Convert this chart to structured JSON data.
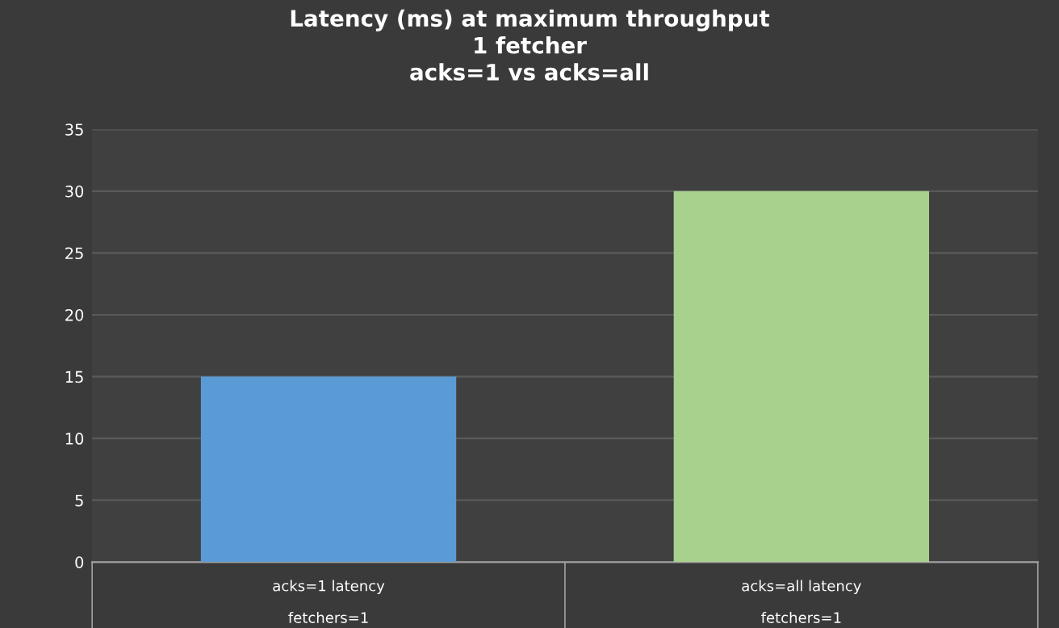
{
  "chart_data": {
    "type": "bar",
    "title": "Latency (ms) at maximum throughput\n1 fetcher\nacks=1 vs acks=all",
    "categories": [
      "acks=1 latency\nfetchers=1",
      "acks=all latency\nfetchers=1"
    ],
    "values": [
      15,
      30
    ],
    "colors": [
      "#5b9bd5",
      "#a9d18e"
    ],
    "ylim": [
      0,
      35
    ],
    "yticks": [
      0,
      5,
      10,
      15,
      20,
      25,
      30,
      35
    ],
    "grid": "y",
    "legend": false
  }
}
